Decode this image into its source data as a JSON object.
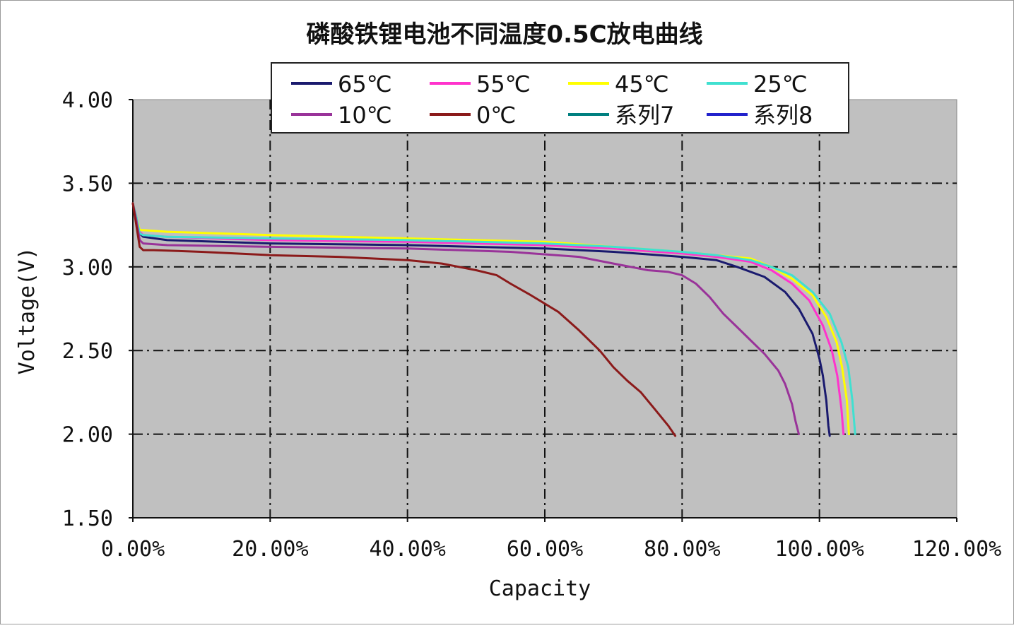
{
  "chart_data": {
    "type": "line",
    "title": "磷酸铁锂电池不同温度0.5C放电曲线",
    "xlabel": "Capacity",
    "ylabel": "Voltage(V)",
    "xlim": [
      0,
      120
    ],
    "ylim": [
      1.5,
      4.0
    ],
    "x_ticks": [
      0,
      20,
      40,
      60,
      80,
      100,
      120
    ],
    "x_tick_labels": [
      "0.00%",
      "20.00%",
      "40.00%",
      "60.00%",
      "80.00%",
      "100.00%",
      "120.00%"
    ],
    "y_ticks": [
      1.5,
      2.0,
      2.5,
      3.0,
      3.5,
      4.0
    ],
    "y_tick_labels": [
      "1.50",
      "2.00",
      "2.50",
      "3.00",
      "3.50",
      "4.00"
    ],
    "grid": true,
    "plot_background": "#c0c0c0",
    "legend_position": "top",
    "series": [
      {
        "name": "65℃",
        "color": "#1a1a6e",
        "x": [
          0,
          0.5,
          1,
          1.5,
          5,
          20,
          40,
          60,
          70,
          80,
          85,
          88,
          92,
          95,
          97,
          99,
          100,
          100.5,
          101,
          101.3,
          101.5
        ],
        "y": [
          3.38,
          3.3,
          3.2,
          3.18,
          3.16,
          3.14,
          3.13,
          3.11,
          3.09,
          3.06,
          3.04,
          3.0,
          2.94,
          2.85,
          2.75,
          2.6,
          2.45,
          2.35,
          2.2,
          2.05,
          1.99
        ]
      },
      {
        "name": "55℃",
        "color": "#ff33cc",
        "x": [
          0,
          0.5,
          1,
          1.5,
          5,
          20,
          40,
          60,
          70,
          80,
          85,
          90,
          93,
          96,
          98.5,
          100.5,
          101.8,
          102.6,
          103.2,
          103.5
        ],
        "y": [
          3.38,
          3.3,
          3.21,
          3.19,
          3.18,
          3.16,
          3.15,
          3.13,
          3.11,
          3.08,
          3.06,
          3.03,
          2.98,
          2.9,
          2.8,
          2.65,
          2.5,
          2.35,
          2.15,
          2.0
        ]
      },
      {
        "name": "45℃",
        "color": "#ffff00",
        "x": [
          0,
          0.5,
          1,
          1.5,
          5,
          20,
          40,
          60,
          70,
          80,
          85,
          90,
          93,
          96,
          99,
          101,
          102.5,
          103.3,
          104,
          104.3
        ],
        "y": [
          3.38,
          3.3,
          3.22,
          3.22,
          3.21,
          3.19,
          3.17,
          3.15,
          3.12,
          3.09,
          3.07,
          3.05,
          3.0,
          2.93,
          2.83,
          2.7,
          2.55,
          2.4,
          2.2,
          2.0
        ]
      },
      {
        "name": "25℃",
        "color": "#40e0d0",
        "x": [
          0,
          0.5,
          1,
          1.5,
          5,
          20,
          40,
          60,
          70,
          80,
          85,
          90,
          93,
          96,
          99,
          101.5,
          103.2,
          104.2,
          104.8,
          105.2
        ],
        "y": [
          3.38,
          3.3,
          3.2,
          3.19,
          3.18,
          3.17,
          3.16,
          3.14,
          3.12,
          3.09,
          3.07,
          3.04,
          3.0,
          2.95,
          2.85,
          2.72,
          2.55,
          2.4,
          2.2,
          2.0
        ]
      },
      {
        "name": "10℃",
        "color": "#993399",
        "x": [
          0,
          0.5,
          1,
          1.5,
          5,
          20,
          40,
          55,
          65,
          70,
          75,
          78,
          80,
          82,
          84,
          86,
          88,
          90,
          92,
          94,
          95,
          96,
          96.5,
          97
        ],
        "y": [
          3.38,
          3.28,
          3.16,
          3.14,
          3.13,
          3.12,
          3.11,
          3.09,
          3.06,
          3.02,
          2.98,
          2.97,
          2.95,
          2.9,
          2.82,
          2.72,
          2.64,
          2.56,
          2.48,
          2.38,
          2.3,
          2.18,
          2.08,
          2.0
        ]
      },
      {
        "name": "0℃",
        "color": "#8b1a1a",
        "x": [
          0,
          0.5,
          1,
          1.5,
          3,
          10,
          20,
          30,
          40,
          45,
          50,
          53,
          55,
          58,
          62,
          65,
          68,
          70,
          72,
          74,
          76,
          78,
          79
        ],
        "y": [
          3.38,
          3.25,
          3.12,
          3.1,
          3.1,
          3.09,
          3.07,
          3.06,
          3.04,
          3.02,
          2.98,
          2.95,
          2.9,
          2.83,
          2.73,
          2.62,
          2.5,
          2.4,
          2.32,
          2.25,
          2.15,
          2.05,
          1.99
        ]
      },
      {
        "name": "系列7",
        "color": "#008080",
        "x": [],
        "y": []
      },
      {
        "name": "系列8",
        "color": "#2222cc",
        "x": [],
        "y": []
      }
    ]
  }
}
